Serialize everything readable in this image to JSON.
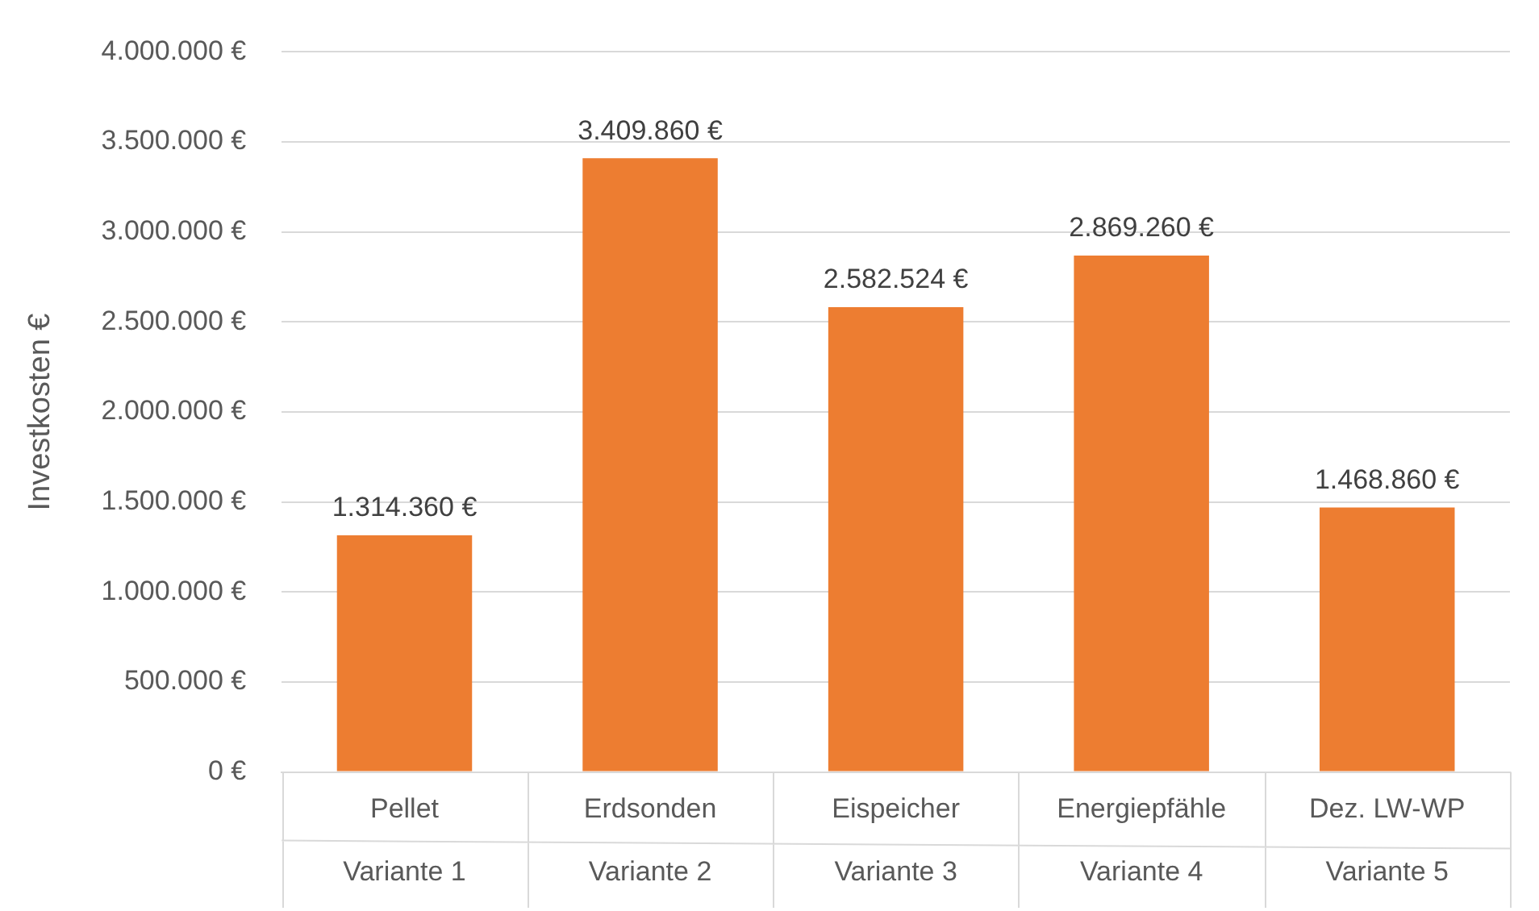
{
  "chart_data": {
    "type": "bar",
    "ylabel": "Investkosten €",
    "categories": [
      "Pellet\nVariante 1",
      "Erdsonden\nVariante 2",
      "Eispeicher\nVariante 3",
      "Energiepfähle\nVariante 4",
      "Dez. LW-WP\nVariante 5"
    ],
    "values": [
      1314360,
      3409860,
      2582524,
      2869260,
      1468860
    ],
    "value_labels": [
      "1.314.360 €",
      "3.409.860 €",
      "2.582.524 €",
      "2.869.260 €",
      "1.468.860 €"
    ],
    "color": "#ed7d31",
    "ylim": [
      0,
      4000000
    ],
    "yticks": [
      {
        "value": 0,
        "label": "0 €"
      },
      {
        "value": 500000,
        "label": "500.000 €"
      },
      {
        "value": 1000000,
        "label": "1.000.000 €"
      },
      {
        "value": 1500000,
        "label": "1.500.000 €"
      },
      {
        "value": 2000000,
        "label": "2.000.000 €"
      },
      {
        "value": 2500000,
        "label": "2.500.000 €"
      },
      {
        "value": 3000000,
        "label": "3.000.000 €"
      },
      {
        "value": 3500000,
        "label": "3.500.000 €"
      },
      {
        "value": 4000000,
        "label": "4.000.000 €"
      }
    ],
    "grid": "y",
    "legend": false
  }
}
